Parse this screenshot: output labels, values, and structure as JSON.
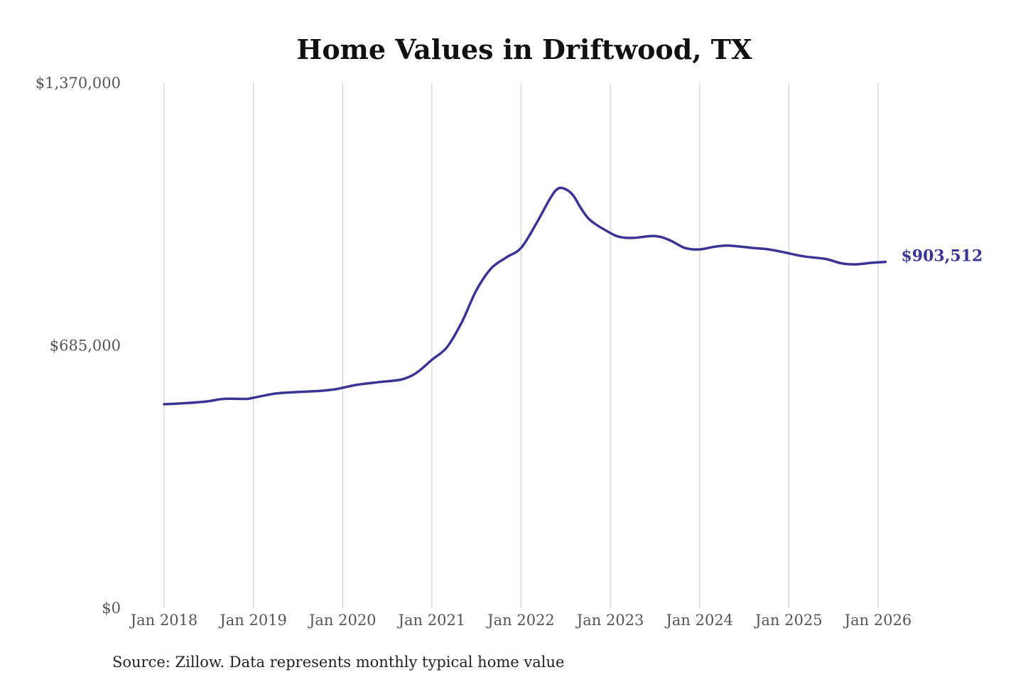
{
  "chart_data": {
    "type": "line",
    "title": "Home Values in Driftwood, TX",
    "source": "Source: Zillow. Data represents monthly typical home value",
    "xlabel": "",
    "ylabel": "",
    "x_ticks": [
      "Jan 2018",
      "Jan 2019",
      "Jan 2020",
      "Jan 2021",
      "Jan 2022",
      "Jan 2023",
      "Jan 2024",
      "Jan 2025",
      "Jan 2026"
    ],
    "y_ticks": [
      "$0",
      "$685,000",
      "$1,370,000"
    ],
    "ylim": [
      0,
      1370000
    ],
    "xlim": [
      "2018-01",
      "2026-01"
    ],
    "grid": "vertical",
    "line_color": "#3b3494",
    "end_label": "$903,512",
    "series": [
      {
        "values": [
          [
            "2018-01",
            532000
          ],
          [
            "2018-04",
            535000
          ],
          [
            "2018-07",
            540000
          ],
          [
            "2018-09",
            546000
          ],
          [
            "2018-12",
            546000
          ],
          [
            "2019-01",
            549000
          ],
          [
            "2019-04",
            560000
          ],
          [
            "2019-07",
            564000
          ],
          [
            "2019-10",
            567000
          ],
          [
            "2019-12",
            571000
          ],
          [
            "2020-01",
            575000
          ],
          [
            "2020-03",
            583000
          ],
          [
            "2020-06",
            590000
          ],
          [
            "2020-09",
            597000
          ],
          [
            "2020-11",
            615000
          ],
          [
            "2021-01",
            648000
          ],
          [
            "2021-03",
            680000
          ],
          [
            "2021-05",
            745000
          ],
          [
            "2021-07",
            830000
          ],
          [
            "2021-09",
            887000
          ],
          [
            "2021-11",
            915000
          ],
          [
            "2022-01",
            940000
          ],
          [
            "2022-03",
            1002000
          ],
          [
            "2022-05",
            1072000
          ],
          [
            "2022-06",
            1095000
          ],
          [
            "2022-07",
            1093000
          ],
          [
            "2022-08",
            1077000
          ],
          [
            "2022-09",
            1045000
          ],
          [
            "2022-10",
            1018000
          ],
          [
            "2022-11",
            1002000
          ],
          [
            "2022-12",
            990000
          ],
          [
            "2023-02",
            970000
          ],
          [
            "2023-04",
            966000
          ],
          [
            "2023-07",
            971000
          ],
          [
            "2023-09",
            960000
          ],
          [
            "2023-11",
            940000
          ],
          [
            "2024-01",
            936000
          ],
          [
            "2024-03",
            943000
          ],
          [
            "2024-05",
            946000
          ],
          [
            "2024-08",
            940000
          ],
          [
            "2024-10",
            937000
          ],
          [
            "2024-12",
            930000
          ],
          [
            "2025-03",
            918000
          ],
          [
            "2025-06",
            911000
          ],
          [
            "2025-08",
            900000
          ],
          [
            "2025-10",
            897000
          ],
          [
            "2025-12",
            901000
          ],
          [
            "2026-02",
            903512
          ]
        ]
      }
    ]
  }
}
